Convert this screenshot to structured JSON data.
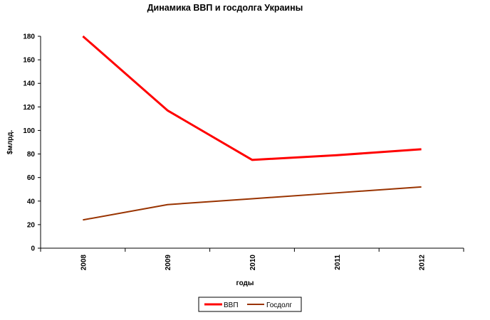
{
  "chart_data": {
    "type": "line",
    "title": "Динамика ВВП и госдолга Украины",
    "xlabel": "годы",
    "ylabel": "$млрд.",
    "categories": [
      "2008",
      "2009",
      "2010",
      "2011",
      "2012"
    ],
    "ylim": [
      0,
      180
    ],
    "yticks": [
      "0",
      "20",
      "40",
      "60",
      "80",
      "100",
      "120",
      "140",
      "160",
      "180"
    ],
    "grid": false,
    "legend_position": "bottom",
    "series": [
      {
        "name": "ВВП",
        "color": "#ff0000",
        "values": [
          180,
          117,
          75,
          79,
          84
        ]
      },
      {
        "name": "Госдолг",
        "color": "#993300",
        "values": [
          24,
          37,
          42,
          47,
          52
        ]
      }
    ]
  }
}
